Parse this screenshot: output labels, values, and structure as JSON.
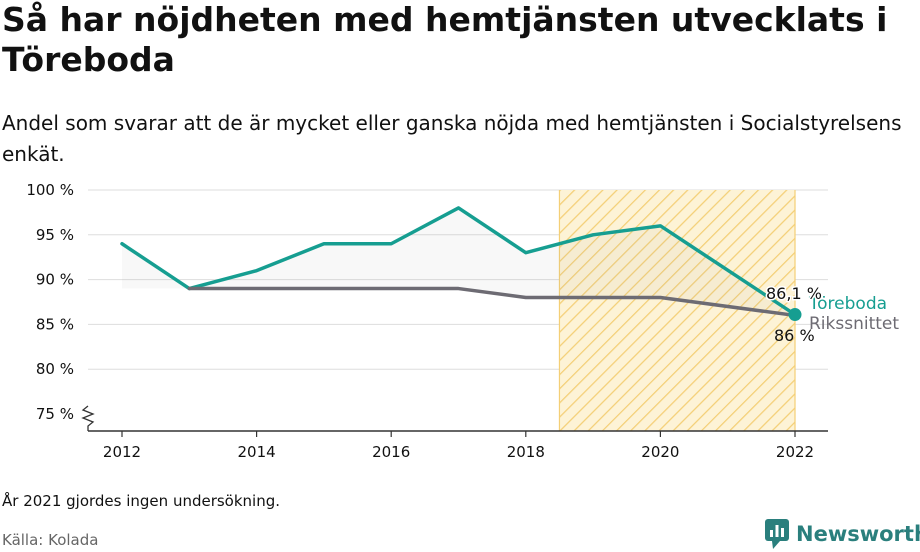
{
  "title": "Så har nöjdheten med hemtjänsten utvecklats i Töreboda",
  "subtitle": "Andel som svarar att de är mycket eller ganska nöjda med hemtjänsten i Socialstyrelsens enkät.",
  "note": "År 2021 gjordes ingen undersökning.",
  "source": "Källa: Kolada",
  "brand": "Newsworthy",
  "colors": {
    "toreboda": "#169e91",
    "riks": "#6d6b73",
    "highlight": "#f7d37a"
  },
  "chart_data": {
    "type": "line",
    "title": "Så har nöjdheten med hemtjänsten utvecklats i Töreboda",
    "xlabel": "",
    "ylabel": "",
    "xlim": [
      2012,
      2022
    ],
    "ylim": [
      75,
      100
    ],
    "x_ticks": [
      2012,
      2014,
      2016,
      2018,
      2020,
      2022
    ],
    "x_tick_labels": [
      "2012",
      "2014",
      "2016",
      "2018",
      "2020",
      "2022"
    ],
    "y_ticks": [
      75,
      80,
      85,
      90,
      95,
      100
    ],
    "y_tick_labels": [
      "75 %",
      "80 %",
      "85 %",
      "90 %",
      "95 %",
      "100 %"
    ],
    "grid": true,
    "broken_axis": true,
    "highlight_range": [
      2018.5,
      2022
    ],
    "series": [
      {
        "name": "Töreboda",
        "x": [
          2012,
          2013,
          2014,
          2015,
          2016,
          2017,
          2018,
          2019,
          2020,
          2022
        ],
        "values": [
          94,
          89,
          91,
          94,
          94,
          98,
          93,
          95,
          96,
          86.1
        ],
        "end_label": "86,1 %"
      },
      {
        "name": "Rikssnittet",
        "x": [
          2013,
          2014,
          2015,
          2016,
          2017,
          2018,
          2019,
          2020,
          2022
        ],
        "values": [
          89,
          89,
          89,
          89,
          89,
          88,
          88,
          88,
          86
        ],
        "end_label": "86 %"
      }
    ]
  }
}
